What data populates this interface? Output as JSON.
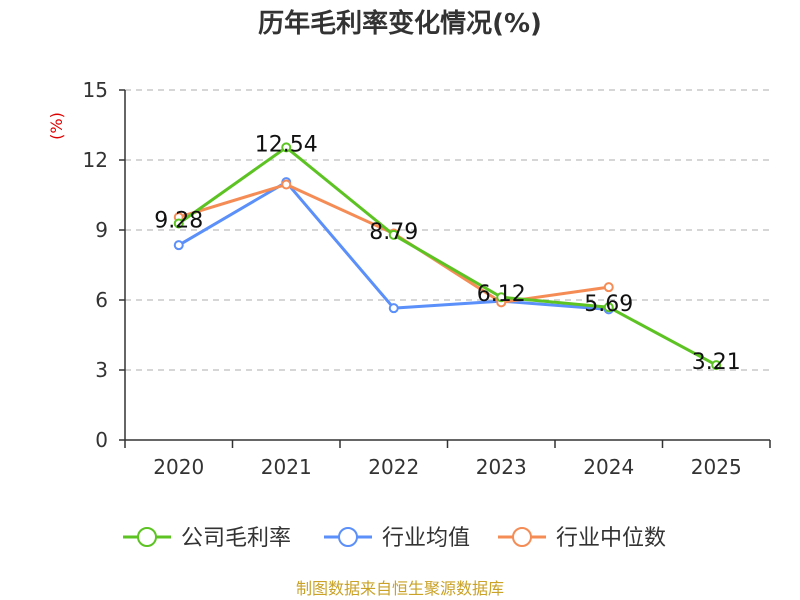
{
  "chart_data": {
    "type": "line",
    "title": "历年毛利率变化情况(%)",
    "ylabel": "(%)",
    "categories": [
      "2020",
      "2021",
      "2022",
      "2023",
      "2024",
      "2025"
    ],
    "ylim": [
      0,
      15
    ],
    "yticks": [
      0,
      3,
      6,
      9,
      12,
      15
    ],
    "grid": true,
    "legend_position": "bottom",
    "series": [
      {
        "name": "公司毛利率",
        "color": "#5cc323",
        "values": [
          9.28,
          12.54,
          8.79,
          6.12,
          5.69,
          3.21
        ],
        "labels": [
          "9.28",
          "12.54",
          "8.79",
          "6.12",
          "5.69",
          "3.21"
        ]
      },
      {
        "name": "行业均值",
        "color": "#5b8ff9",
        "values": [
          8.35,
          11.05,
          5.65,
          5.95,
          5.6,
          null
        ]
      },
      {
        "name": "行业中位数",
        "color": "#f58c55",
        "values": [
          9.55,
          10.95,
          8.85,
          5.9,
          6.55,
          null
        ]
      }
    ],
    "source": "制图数据来自恒生聚源数据库"
  }
}
